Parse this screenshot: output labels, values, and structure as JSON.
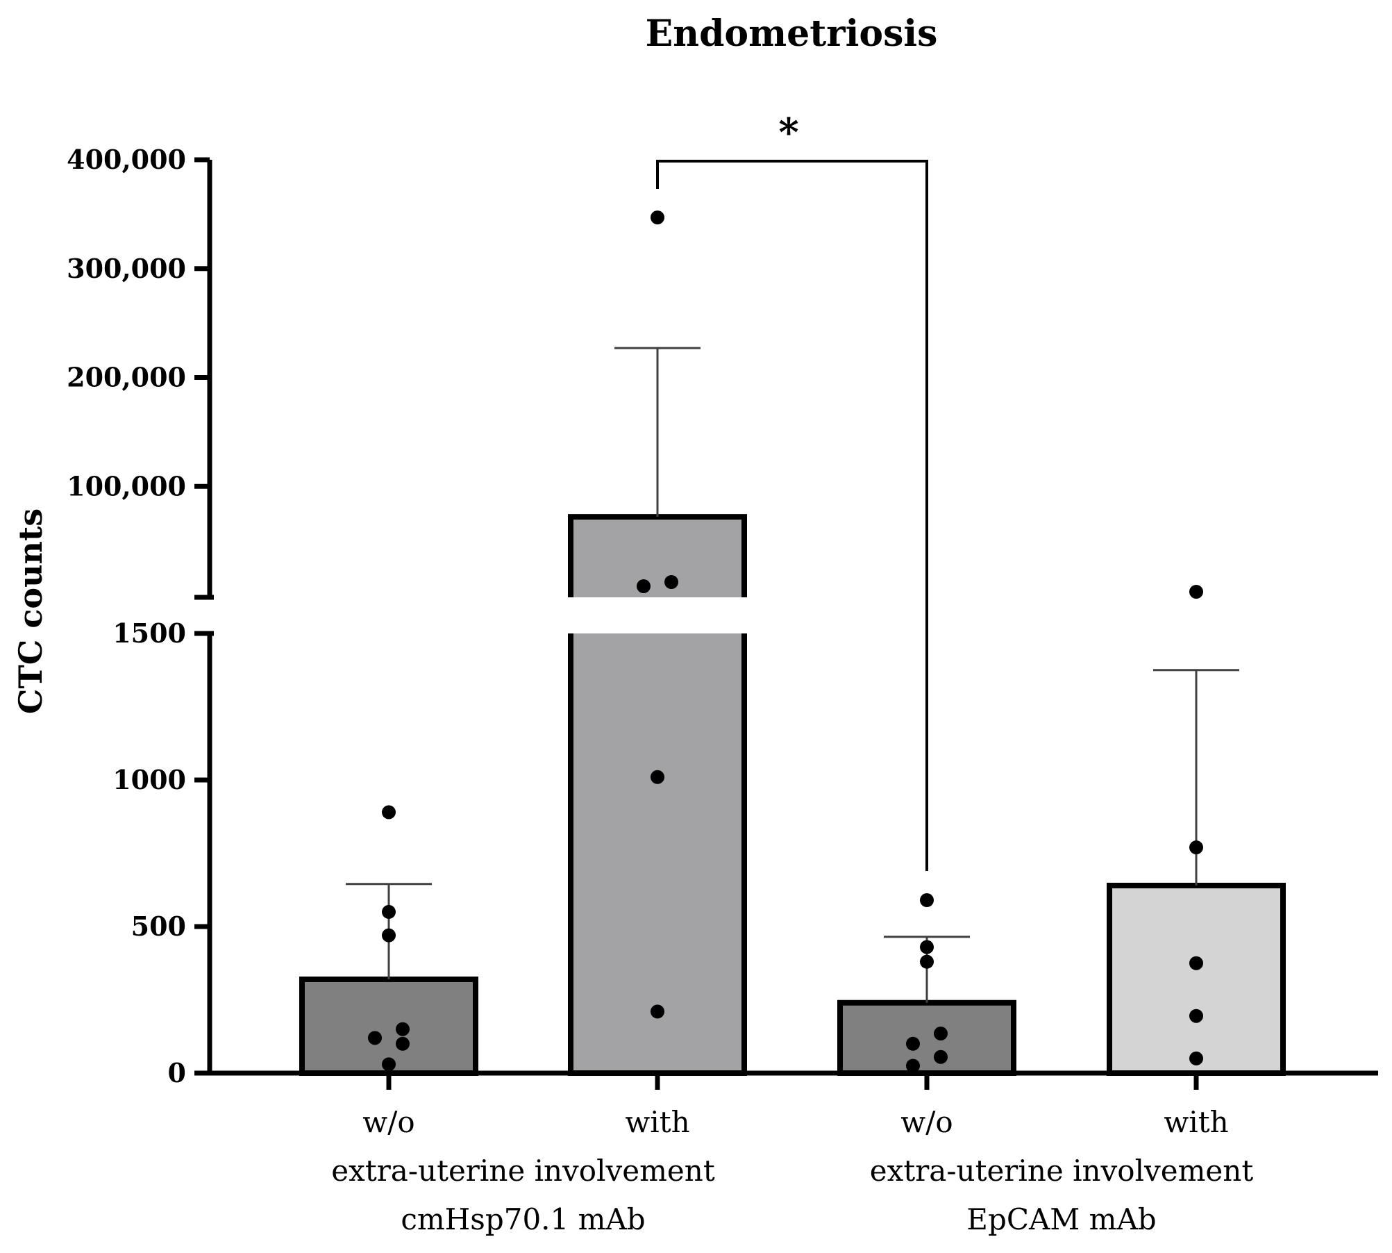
{
  "chart_data": {
    "type": "bar",
    "title": "Endometriosis",
    "ylabel": "CTC counts",
    "xlabel": "",
    "y_axis": {
      "type": "broken",
      "lower_segment": {
        "range": [
          0,
          1500
        ],
        "ticks": [
          0,
          500,
          1000,
          1500
        ],
        "tick_labels": [
          "0",
          "500",
          "1000",
          "1500"
        ]
      },
      "upper_segment": {
        "range": [
          0,
          400000
        ],
        "ticks": [
          100000,
          200000,
          300000,
          400000
        ],
        "tick_labels": [
          "100,000",
          "200,000",
          "300,000",
          "400,000"
        ]
      }
    },
    "categories": [
      "w/o",
      "with",
      "w/o",
      "with"
    ],
    "group_labels": [
      {
        "line1": "extra-uterine involvement",
        "line2": "cmHsp70.1 mAb"
      },
      {
        "line1": "extra-uterine involvement",
        "line2": "EpCAM mAb"
      }
    ],
    "bars": [
      {
        "category": "w/o",
        "group": "cmHsp70.1 mAb",
        "mean": 320,
        "error_upper": 645,
        "color": "#808080",
        "points": [
          890,
          550,
          470,
          150,
          120,
          100,
          30
        ]
      },
      {
        "category": "with",
        "group": "cmHsp70.1 mAb",
        "mean": 72000,
        "error_upper": 227000,
        "color": "#a3a3a6",
        "points": [
          347000,
          4000,
          3500,
          1010,
          210
        ]
      },
      {
        "category": "w/o",
        "group": "EpCAM mAb",
        "mean": 240,
        "error_upper": 465,
        "color": "#808080",
        "points": [
          590,
          430,
          380,
          135,
          100,
          55,
          25
        ]
      },
      {
        "category": "with",
        "group": "EpCAM mAb",
        "mean": 640,
        "error_upper": 1375,
        "color": "#d4d4d4",
        "points": [
          1620,
          770,
          375,
          195,
          50
        ]
      }
    ],
    "significance": [
      {
        "from_bar": 1,
        "to_bar": 2,
        "label": "*"
      }
    ]
  }
}
